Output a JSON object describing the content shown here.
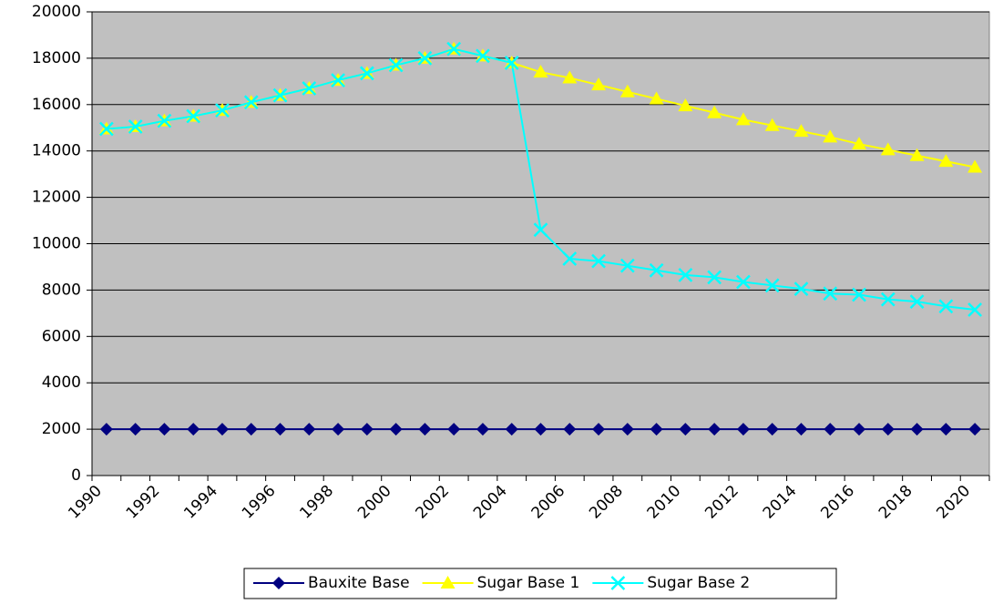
{
  "chart_data": {
    "type": "line",
    "categories": [
      "1990",
      null,
      "1992",
      null,
      "1994",
      null,
      "1996",
      null,
      "1998",
      null,
      "2000",
      null,
      "2002",
      null,
      "2004",
      null,
      "2006",
      null,
      "2008",
      null,
      "2010",
      null,
      "2012",
      null,
      "2014",
      null,
      "2016",
      null,
      "2018",
      null,
      "2020"
    ],
    "series": [
      {
        "name": "Bauxite Base",
        "color": "#000080",
        "marker": "diamond",
        "values": [
          2000,
          2000,
          2000,
          2000,
          2000,
          2000,
          2000,
          2000,
          2000,
          2000,
          2000,
          2000,
          2000,
          2000,
          2000,
          2000,
          2000,
          2000,
          2000,
          2000,
          2000,
          2000,
          2000,
          2000,
          2000,
          2000,
          2000,
          2000,
          2000,
          2000,
          2000
        ]
      },
      {
        "name": "Sugar Base 1",
        "color": "#ffff00",
        "marker": "triangle",
        "values": [
          14950,
          15050,
          15300,
          15500,
          15750,
          16100,
          16400,
          16700,
          17050,
          17350,
          17700,
          18000,
          18400,
          18100,
          17800,
          17400,
          17150,
          16850,
          16550,
          16250,
          15950,
          15650,
          15350,
          15100,
          14850,
          14600,
          14300,
          14050,
          13800,
          13550,
          13300
        ]
      },
      {
        "name": "Sugar Base 2",
        "color": "#00ffff",
        "marker": "x",
        "values": [
          14950,
          15050,
          15300,
          15500,
          15750,
          16100,
          16400,
          16700,
          17050,
          17350,
          17700,
          18000,
          18400,
          18100,
          17800,
          10600,
          9350,
          9250,
          9050,
          8850,
          8650,
          8550,
          8350,
          8200,
          8050,
          7850,
          7800,
          7600,
          7500,
          7300,
          7150
        ]
      }
    ],
    "ylim": [
      0,
      20000
    ],
    "yticks": [
      0,
      2000,
      4000,
      6000,
      8000,
      10000,
      12000,
      14000,
      16000,
      18000,
      20000
    ],
    "grid": true,
    "legend": "bottom"
  }
}
